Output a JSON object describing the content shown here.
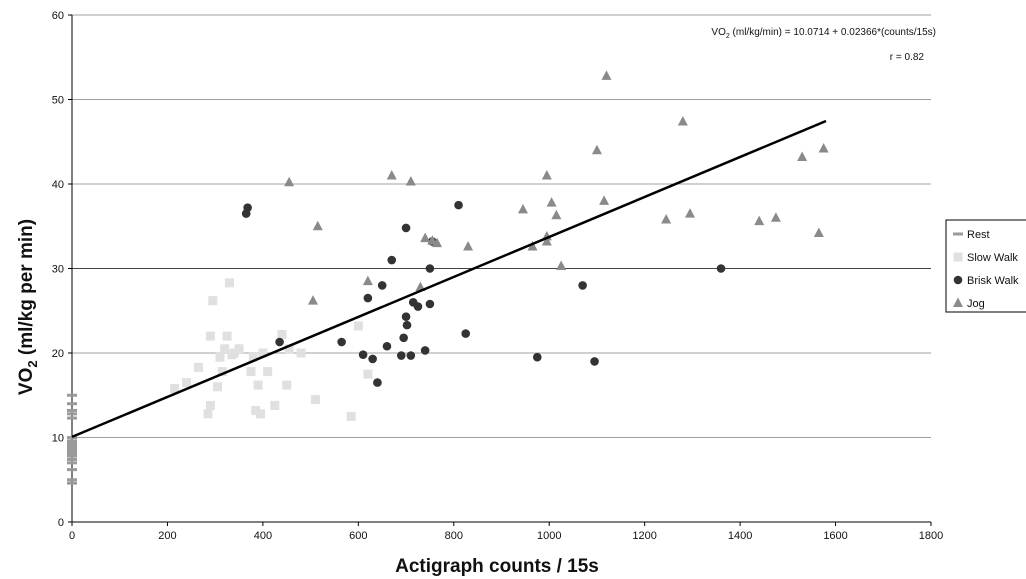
{
  "chart_data": {
    "type": "scatter",
    "xlabel": "Actigraph counts / 15s",
    "ylabel_main": "VO",
    "ylabel_sub": "2",
    "ylabel_rest": " (ml/kg per min)",
    "xlim": [
      0,
      1800
    ],
    "ylim": [
      0,
      60
    ],
    "xticks": [
      0,
      200,
      400,
      600,
      800,
      1000,
      1200,
      1400,
      1600,
      1800
    ],
    "yticks": [
      0,
      10,
      20,
      30,
      40,
      50,
      60
    ],
    "grid": "horizontal",
    "legend_position": "right",
    "equation": {
      "prefix": "VO",
      "sub": "2",
      "rest": " (ml/kg/min) = 10.0714 + 0.02366*(counts/15s)"
    },
    "r_text": "r = 0.82",
    "regression": {
      "intercept": 10.0714,
      "slope": 0.02366,
      "x_range": [
        0,
        1580
      ]
    },
    "colors": {
      "rest": "#9a9a9a",
      "slow_walk": "#e0e0e0",
      "brisk_walk": "#333333",
      "jog": "#8a8a8a",
      "line": "#000000",
      "grid": "#a0a0a0"
    },
    "series": [
      {
        "name": "Rest",
        "marker": "dash",
        "color": "#9a9a9a",
        "points": [
          [
            0,
            15
          ],
          [
            0,
            14
          ],
          [
            0,
            13.2
          ],
          [
            0,
            12.8
          ],
          [
            0,
            12.3
          ],
          [
            0,
            10
          ],
          [
            0,
            9.6
          ],
          [
            0,
            9.3
          ],
          [
            0,
            9
          ],
          [
            0,
            8.7
          ],
          [
            0,
            8.4
          ],
          [
            0,
            8.1
          ],
          [
            0,
            7.8
          ],
          [
            0,
            7.4
          ],
          [
            0,
            7
          ],
          [
            0,
            6.2
          ],
          [
            0,
            5
          ],
          [
            0,
            4.6
          ]
        ]
      },
      {
        "name": "Slow  Walk",
        "marker": "square",
        "color": "#e0e0e0",
        "points": [
          [
            215,
            15.8
          ],
          [
            240,
            16.5
          ],
          [
            265,
            18.3
          ],
          [
            285,
            12.8
          ],
          [
            290,
            13.8
          ],
          [
            290,
            22
          ],
          [
            295,
            26.2
          ],
          [
            305,
            16
          ],
          [
            310,
            19.5
          ],
          [
            315,
            17.8
          ],
          [
            320,
            20.5
          ],
          [
            325,
            22
          ],
          [
            330,
            28.3
          ],
          [
            335,
            19.8
          ],
          [
            340,
            20
          ],
          [
            350,
            20.5
          ],
          [
            375,
            17.8
          ],
          [
            380,
            19.5
          ],
          [
            385,
            13.2
          ],
          [
            390,
            16.2
          ],
          [
            395,
            12.8
          ],
          [
            400,
            20
          ],
          [
            410,
            17.8
          ],
          [
            425,
            13.8
          ],
          [
            440,
            22.2
          ],
          [
            450,
            16.2
          ],
          [
            455,
            20.5
          ],
          [
            480,
            20
          ],
          [
            510,
            14.5
          ],
          [
            585,
            12.5
          ],
          [
            600,
            23.2
          ],
          [
            620,
            17.5
          ]
        ]
      },
      {
        "name": "Brisk Walk",
        "marker": "circle",
        "color": "#333333",
        "points": [
          [
            365,
            36.5
          ],
          [
            368,
            37.2
          ],
          [
            435,
            21.3
          ],
          [
            565,
            21.3
          ],
          [
            610,
            19.8
          ],
          [
            620,
            26.5
          ],
          [
            630,
            19.3
          ],
          [
            640,
            16.5
          ],
          [
            650,
            28
          ],
          [
            660,
            20.8
          ],
          [
            670,
            31
          ],
          [
            690,
            19.7
          ],
          [
            695,
            21.8
          ],
          [
            700,
            34.8
          ],
          [
            700,
            24.3
          ],
          [
            702,
            23.3
          ],
          [
            710,
            19.7
          ],
          [
            715,
            26
          ],
          [
            725,
            25.5
          ],
          [
            740,
            20.3
          ],
          [
            750,
            25.8
          ],
          [
            750,
            30
          ],
          [
            755,
            33.2
          ],
          [
            810,
            37.5
          ],
          [
            825,
            22.3
          ],
          [
            975,
            19.5
          ],
          [
            1070,
            28
          ],
          [
            1095,
            19
          ],
          [
            1360,
            30
          ]
        ]
      },
      {
        "name": "Jog",
        "marker": "triangle",
        "color": "#8a8a8a",
        "points": [
          [
            455,
            40.2
          ],
          [
            505,
            26.2
          ],
          [
            515,
            35
          ],
          [
            620,
            28.5
          ],
          [
            670,
            41
          ],
          [
            710,
            40.3
          ],
          [
            730,
            27.8
          ],
          [
            740,
            33.6
          ],
          [
            755,
            33.3
          ],
          [
            765,
            33
          ],
          [
            830,
            32.6
          ],
          [
            945,
            37
          ],
          [
            965,
            32.6
          ],
          [
            995,
            33.2
          ],
          [
            995,
            33.8
          ],
          [
            995,
            41
          ],
          [
            1005,
            37.8
          ],
          [
            1015,
            36.3
          ],
          [
            1025,
            30.3
          ],
          [
            1100,
            44
          ],
          [
            1115,
            38
          ],
          [
            1120,
            52.8
          ],
          [
            1245,
            35.8
          ],
          [
            1280,
            47.4
          ],
          [
            1295,
            36.5
          ],
          [
            1440,
            35.6
          ],
          [
            1475,
            36
          ],
          [
            1530,
            43.2
          ],
          [
            1565,
            34.2
          ],
          [
            1575,
            44.2
          ]
        ]
      }
    ]
  }
}
